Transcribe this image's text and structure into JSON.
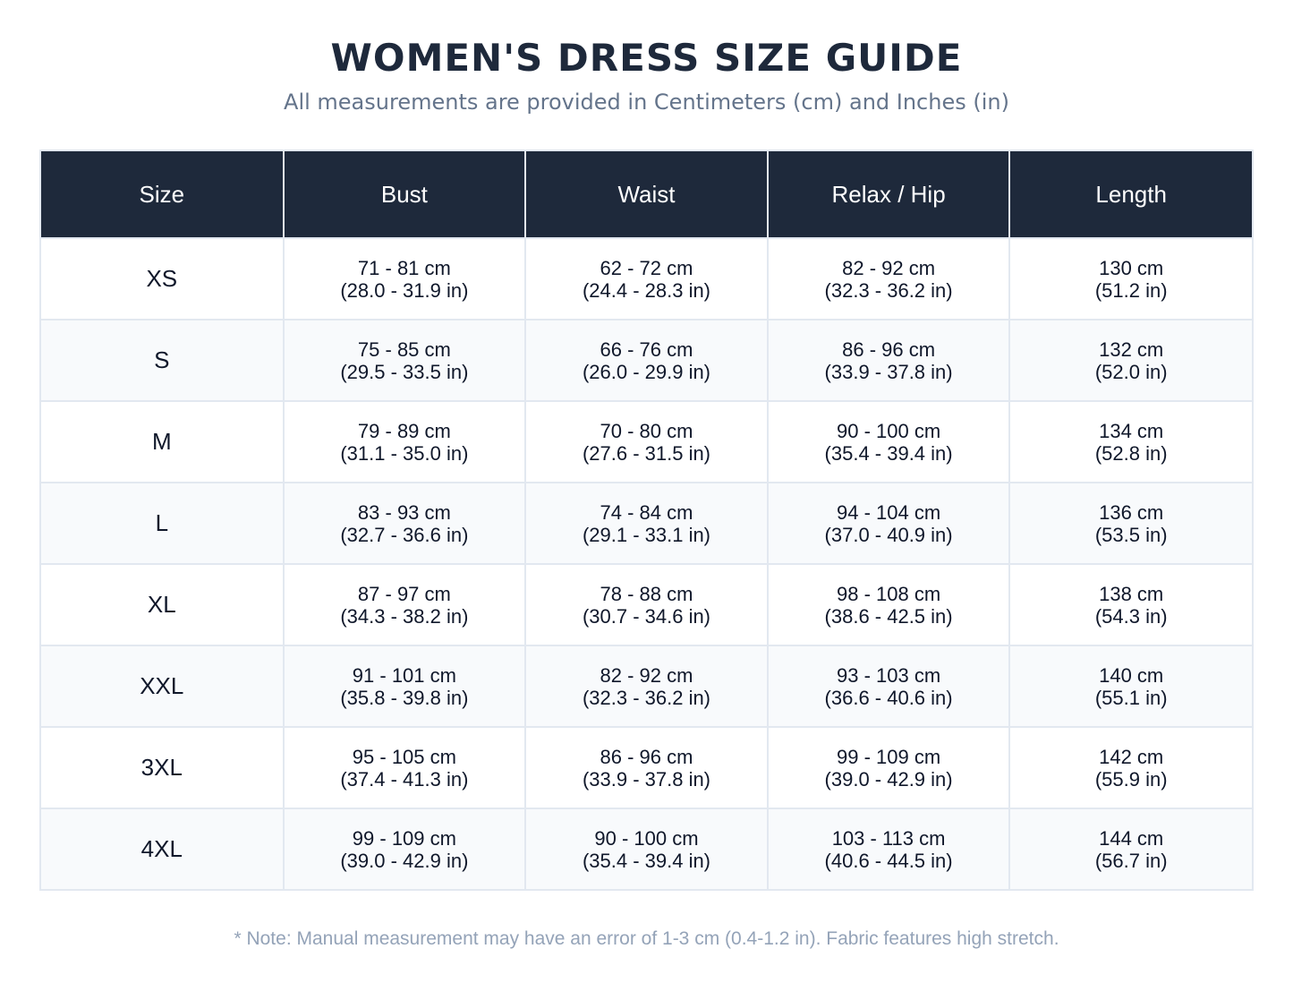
{
  "title": "WOMEN'S DRESS SIZE GUIDE",
  "subtitle": "All measurements are provided in Centimeters (cm) and Inches (in)",
  "table": {
    "headers": [
      "Size",
      "Bust",
      "Waist",
      "Relax / Hip",
      "Length"
    ],
    "rows": [
      {
        "size": "XS",
        "bust": [
          "71 - 81 cm",
          "(28.0 - 31.9 in)"
        ],
        "waist": [
          "62 - 72 cm",
          "(24.4 - 28.3 in)"
        ],
        "hip": [
          "82 - 92 cm",
          "(32.3 - 36.2 in)"
        ],
        "length": [
          "130 cm",
          "(51.2 in)"
        ]
      },
      {
        "size": "S",
        "bust": [
          "75 - 85 cm",
          "(29.5 - 33.5 in)"
        ],
        "waist": [
          "66 - 76 cm",
          "(26.0 - 29.9 in)"
        ],
        "hip": [
          "86 - 96 cm",
          "(33.9 - 37.8 in)"
        ],
        "length": [
          "132 cm",
          "(52.0 in)"
        ]
      },
      {
        "size": "M",
        "bust": [
          "79 - 89 cm",
          "(31.1 - 35.0 in)"
        ],
        "waist": [
          "70 - 80 cm",
          "(27.6 - 31.5 in)"
        ],
        "hip": [
          "90 - 100 cm",
          "(35.4 - 39.4 in)"
        ],
        "length": [
          "134 cm",
          "(52.8 in)"
        ]
      },
      {
        "size": "L",
        "bust": [
          "83 - 93 cm",
          "(32.7 - 36.6 in)"
        ],
        "waist": [
          "74 - 84 cm",
          "(29.1 - 33.1 in)"
        ],
        "hip": [
          "94 - 104 cm",
          "(37.0 - 40.9 in)"
        ],
        "length": [
          "136 cm",
          "(53.5 in)"
        ]
      },
      {
        "size": "XL",
        "bust": [
          "87 - 97 cm",
          "(34.3 - 38.2 in)"
        ],
        "waist": [
          "78 - 88 cm",
          "(30.7 - 34.6 in)"
        ],
        "hip": [
          "98 - 108 cm",
          "(38.6 - 42.5 in)"
        ],
        "length": [
          "138 cm",
          "(54.3 in)"
        ]
      },
      {
        "size": "XXL",
        "bust": [
          "91 - 101 cm",
          "(35.8 - 39.8 in)"
        ],
        "waist": [
          "82 - 92 cm",
          "(32.3 - 36.2 in)"
        ],
        "hip": [
          "93 - 103 cm",
          "(36.6 - 40.6 in)"
        ],
        "length": [
          "140 cm",
          "(55.1 in)"
        ]
      },
      {
        "size": "3XL",
        "bust": [
          "95 - 105 cm",
          "(37.4 - 41.3 in)"
        ],
        "waist": [
          "86 - 96 cm",
          "(33.9 - 37.8 in)"
        ],
        "hip": [
          "99 - 109 cm",
          "(39.0 - 42.9 in)"
        ],
        "length": [
          "142 cm",
          "(55.9 in)"
        ]
      },
      {
        "size": "4XL",
        "bust": [
          "99 - 109 cm",
          "(39.0 - 42.9 in)"
        ],
        "waist": [
          "90 - 100 cm",
          "(35.4 - 39.4 in)"
        ],
        "hip": [
          "103 - 113 cm",
          "(40.6 - 44.5 in)"
        ],
        "length": [
          "144 cm",
          "(56.7 in)"
        ]
      }
    ]
  },
  "note": "* Note: Manual measurement may have an error of 1-3 cm (0.4-1.2 in). Fabric features high stretch.",
  "colors": {
    "header_bg": "#1e293b",
    "title": "#1e293b",
    "subtitle": "#64748b",
    "border": "#e2e8f0",
    "alt_row": "#f8fafc",
    "note": "#94a3b8"
  }
}
